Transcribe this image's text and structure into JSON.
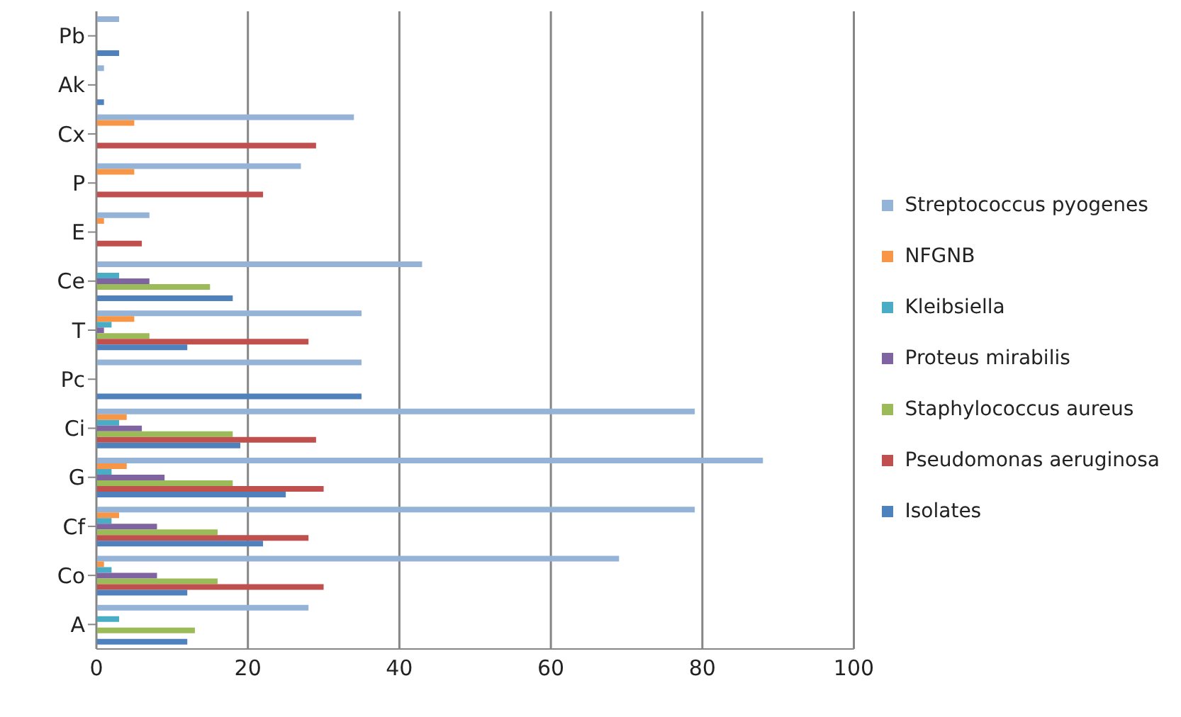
{
  "chart_data": {
    "type": "bar",
    "orientation": "horizontal",
    "categories": [
      "Pb",
      "Ak",
      "Cx",
      "P",
      "E",
      "Ce",
      "T",
      "Pc",
      "Ci",
      "G",
      "Cf",
      "Co",
      "A"
    ],
    "series": [
      {
        "name": "Streptococcus pyogenes",
        "color": "#95b3d7",
        "values": [
          3,
          1,
          34,
          27,
          7,
          43,
          35,
          35,
          79,
          88,
          79,
          69,
          28
        ]
      },
      {
        "name": "NFGNB",
        "color": "#f79646",
        "values": [
          0,
          0,
          5,
          5,
          1,
          0,
          5,
          0,
          4,
          4,
          3,
          1,
          0
        ]
      },
      {
        "name": "Kleibsiella",
        "color": "#4bacc6",
        "values": [
          0,
          0,
          0,
          0,
          0,
          3,
          2,
          0,
          3,
          2,
          2,
          2,
          3
        ]
      },
      {
        "name": "Proteus mirabilis",
        "color": "#8064a2",
        "values": [
          0,
          0,
          0,
          0,
          0,
          7,
          1,
          0,
          6,
          9,
          8,
          8,
          0
        ]
      },
      {
        "name": "Staphylococcus aureus",
        "color": "#9bbb59",
        "values": [
          0,
          0,
          0,
          0,
          0,
          15,
          7,
          0,
          18,
          18,
          16,
          16,
          13
        ]
      },
      {
        "name": "Pseudomonas aeruginosa",
        "color": "#c0504d",
        "values": [
          0,
          0,
          29,
          22,
          6,
          0,
          28,
          0,
          29,
          30,
          28,
          30,
          0
        ]
      },
      {
        "name": "Isolates",
        "color": "#4f81bd",
        "values": [
          3,
          1,
          0,
          0,
          0,
          18,
          12,
          35,
          19,
          25,
          22,
          12,
          12
        ]
      }
    ],
    "xlim": [
      0,
      100
    ],
    "xticks": [
      0,
      20,
      40,
      60,
      80,
      100
    ],
    "grid": "x",
    "legend": "right"
  }
}
